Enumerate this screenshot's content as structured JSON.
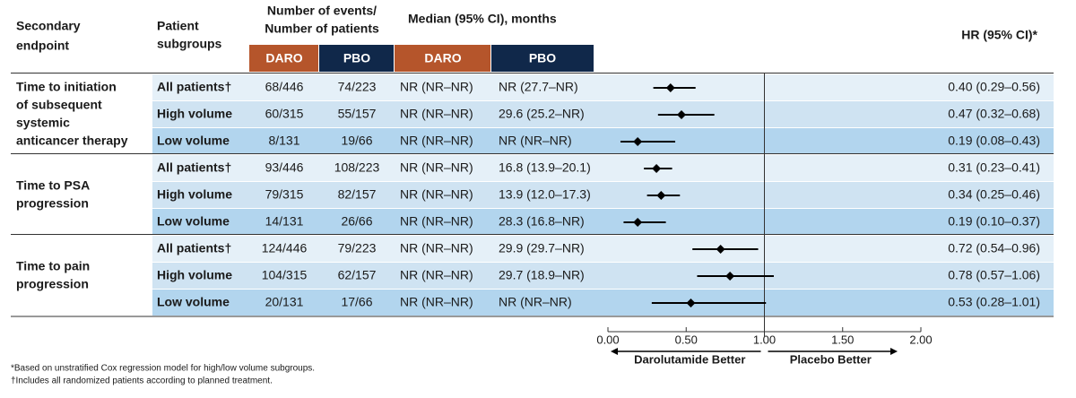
{
  "chart_data": {
    "type": "forest",
    "headers": {
      "endpoint": [
        "Secondary",
        "endpoint"
      ],
      "subgroup": [
        "Patient",
        "subgroups"
      ],
      "events": [
        "Number of events/",
        "Number of patients"
      ],
      "median": "Median (95% CI), months",
      "hr": "HR (95% CI)*",
      "arms": [
        "DARO",
        "PBO",
        "DARO",
        "PBO"
      ]
    },
    "arm_colors": [
      "#b5552b",
      "#10284a"
    ],
    "row_colors": [
      "#e5f0f8",
      "#cfe3f2",
      "#b2d5ee"
    ],
    "groups": [
      {
        "endpoint": [
          "Time to initiation",
          "of subsequent",
          "systemic",
          "anticancer therapy"
        ],
        "rows": [
          {
            "subgroup": "All patients†",
            "daro_events": "68/446",
            "pbo_events": "74/223",
            "daro_median": "NR (NR–NR)",
            "pbo_median": "NR (27.7–NR)",
            "hr": 0.4,
            "ci": [
              0.29,
              0.56
            ],
            "hr_label": "0.40 (0.29–0.56)"
          },
          {
            "subgroup": "High volume",
            "daro_events": "60/315",
            "pbo_events": "55/157",
            "daro_median": "NR (NR–NR)",
            "pbo_median": "29.6 (25.2–NR)",
            "hr": 0.47,
            "ci": [
              0.32,
              0.68
            ],
            "hr_label": "0.47 (0.32–0.68)"
          },
          {
            "subgroup": "Low volume",
            "daro_events": "8/131",
            "pbo_events": "19/66",
            "daro_median": "NR (NR–NR)",
            "pbo_median": "NR (NR–NR)",
            "hr": 0.19,
            "ci": [
              0.08,
              0.43
            ],
            "hr_label": "0.19 (0.08–0.43)"
          }
        ]
      },
      {
        "endpoint": [
          "Time to PSA",
          "progression"
        ],
        "rows": [
          {
            "subgroup": "All patients†",
            "daro_events": "93/446",
            "pbo_events": "108/223",
            "daro_median": "NR (NR–NR)",
            "pbo_median": "16.8 (13.9–20.1)",
            "hr": 0.31,
            "ci": [
              0.23,
              0.41
            ],
            "hr_label": "0.31 (0.23–0.41)"
          },
          {
            "subgroup": "High volume",
            "daro_events": "79/315",
            "pbo_events": "82/157",
            "daro_median": "NR (NR–NR)",
            "pbo_median": "13.9 (12.0–17.3)",
            "hr": 0.34,
            "ci": [
              0.25,
              0.46
            ],
            "hr_label": "0.34 (0.25–0.46)"
          },
          {
            "subgroup": "Low volume",
            "daro_events": "14/131",
            "pbo_events": "26/66",
            "daro_median": "NR (NR–NR)",
            "pbo_median": "28.3 (16.8–NR)",
            "hr": 0.19,
            "ci": [
              0.1,
              0.37
            ],
            "hr_label": "0.19 (0.10–0.37)"
          }
        ]
      },
      {
        "endpoint": [
          "Time to pain",
          "progression"
        ],
        "rows": [
          {
            "subgroup": "All patients†",
            "daro_events": "124/446",
            "pbo_events": "79/223",
            "daro_median": "NR (NR–NR)",
            "pbo_median": "29.9 (29.7–NR)",
            "hr": 0.72,
            "ci": [
              0.54,
              0.96
            ],
            "hr_label": "0.72 (0.54–0.96)"
          },
          {
            "subgroup": "High volume",
            "daro_events": "104/315",
            "pbo_events": "62/157",
            "daro_median": "NR (NR–NR)",
            "pbo_median": "29.7 (18.9–NR)",
            "hr": 0.78,
            "ci": [
              0.57,
              1.06
            ],
            "hr_label": "0.78 (0.57–1.06)"
          },
          {
            "subgroup": "Low volume",
            "daro_events": "20/131",
            "pbo_events": "17/66",
            "daro_median": "NR (NR–NR)",
            "pbo_median": "NR (NR–NR)",
            "hr": 0.53,
            "ci": [
              0.28,
              1.01
            ],
            "hr_label": "0.53 (0.28–1.01)"
          }
        ]
      }
    ],
    "xlim": [
      0,
      2
    ],
    "xticks": [
      {
        "value": 0,
        "label": "0.00"
      },
      {
        "value": 0.5,
        "label": "0.50"
      },
      {
        "value": 1,
        "label": "1.00"
      },
      {
        "value": 1.5,
        "label": "1.50"
      },
      {
        "value": 2,
        "label": "2.00"
      }
    ],
    "reference_line": 1,
    "left_label": "Darolutamide Better",
    "right_label": "Placebo Better",
    "footnotes": [
      "*Based on unstratified Cox regression model for high/low volume subgroups.",
      "†Includes all randomized patients according to planned treatment."
    ]
  }
}
